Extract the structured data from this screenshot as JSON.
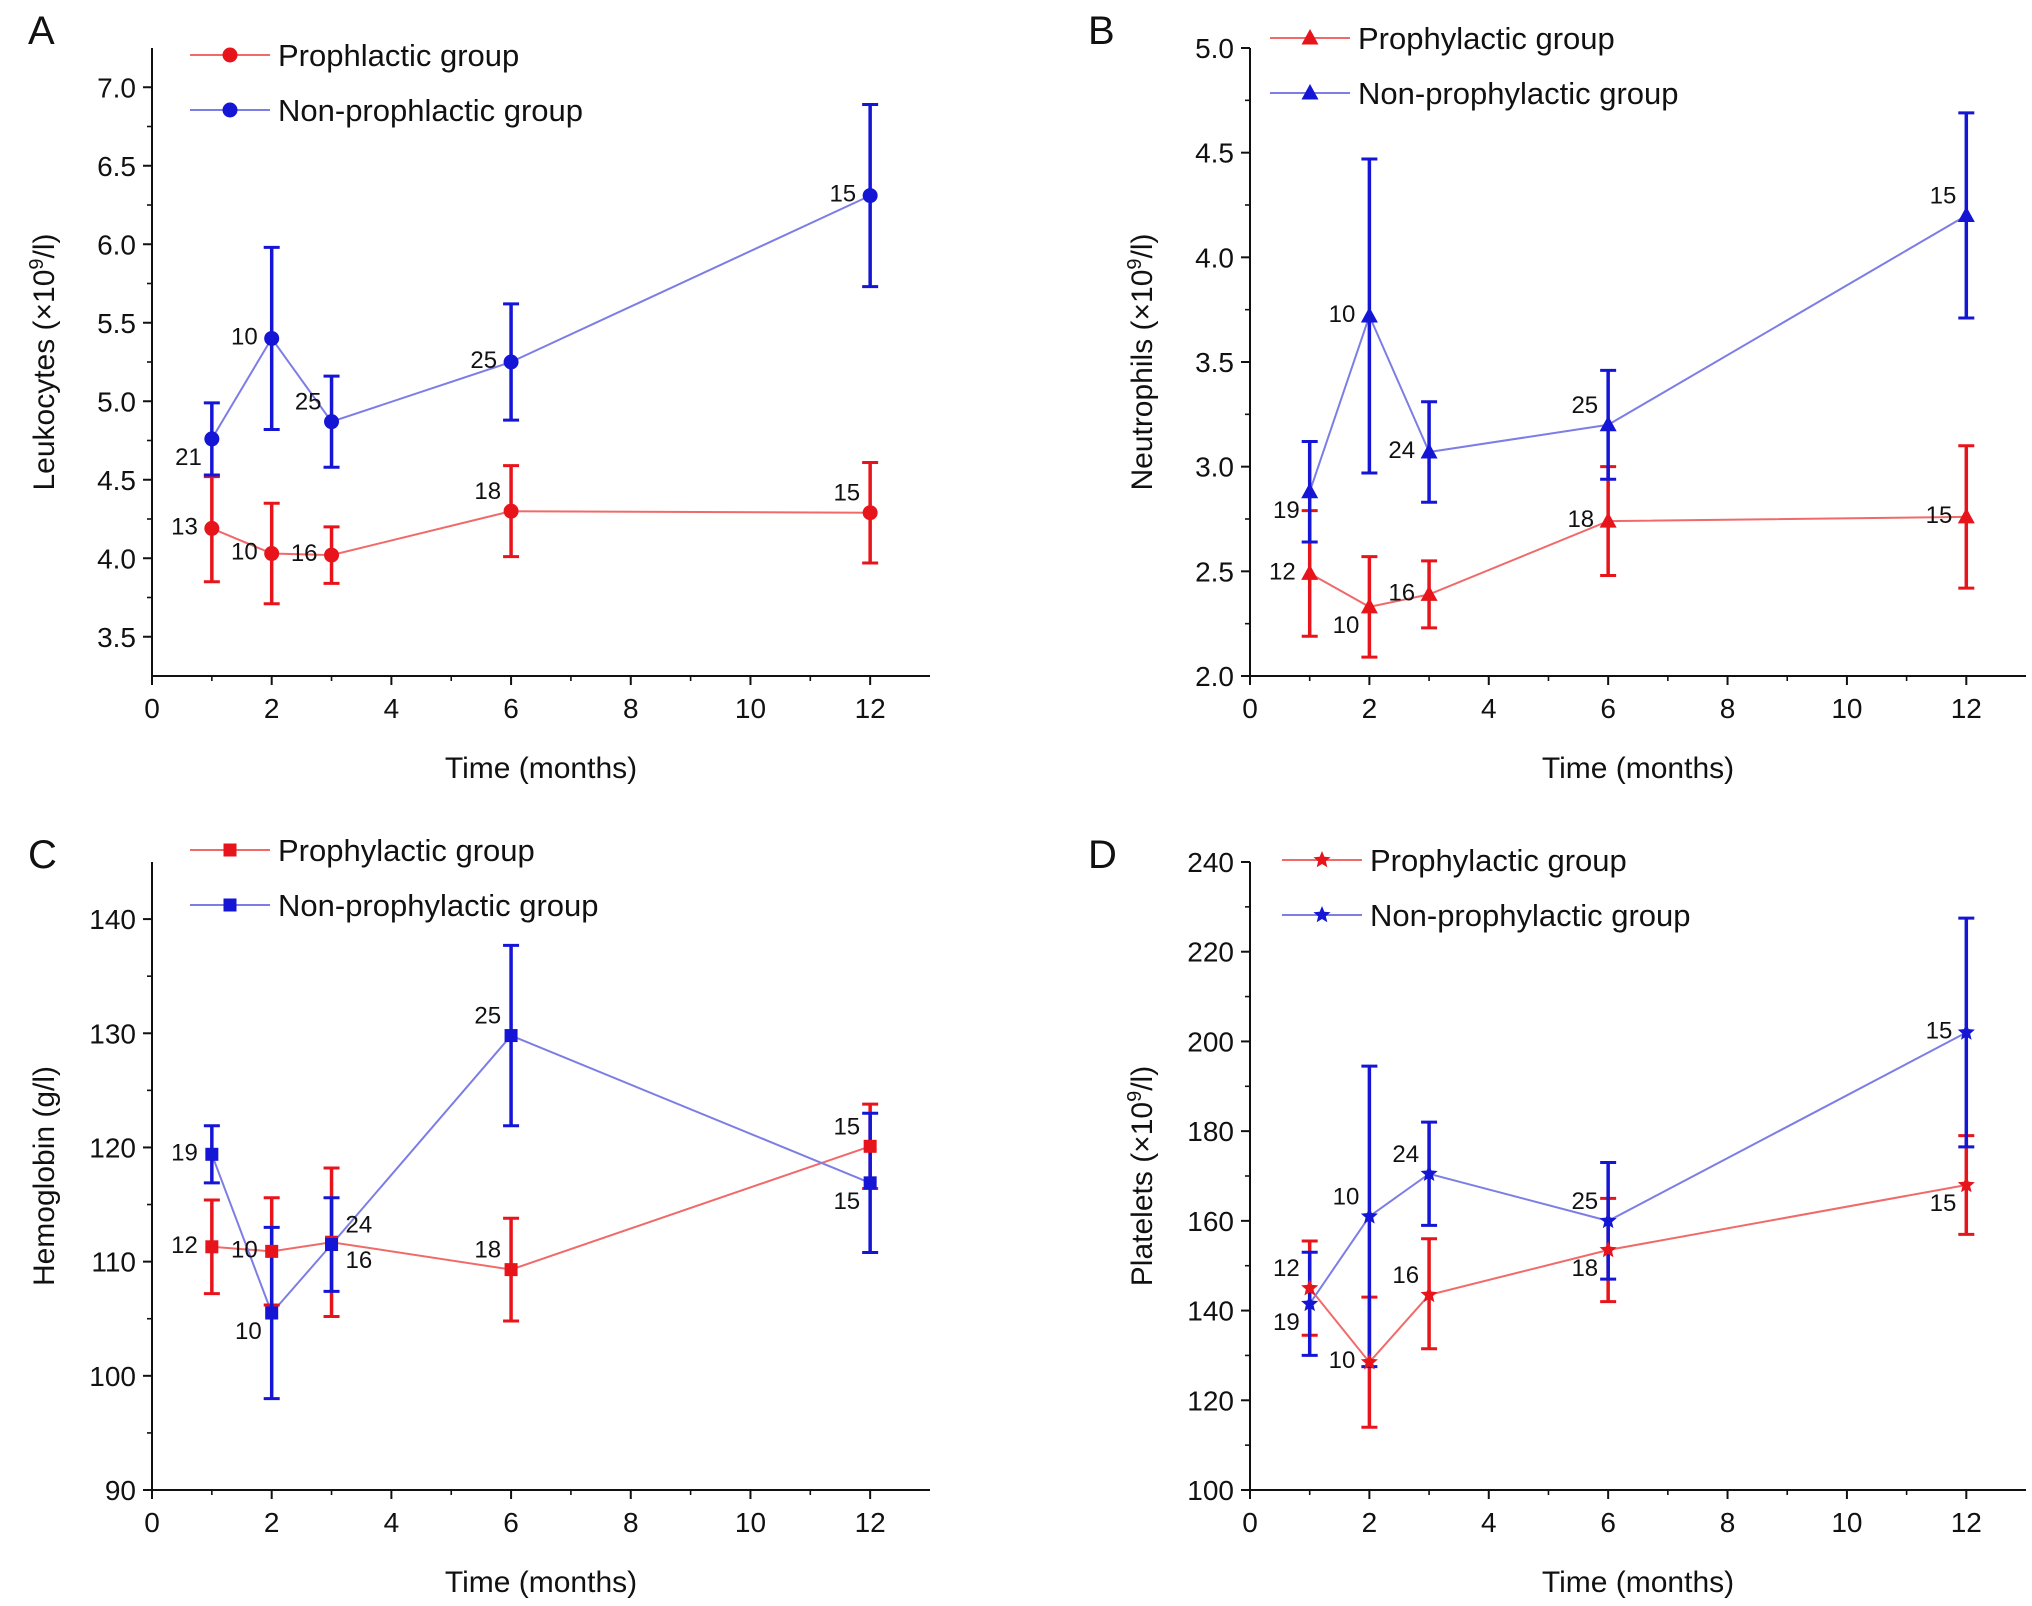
{
  "colors": {
    "prophylactic": "#e8141b",
    "non_prophylactic": "#1515d6",
    "line_prophylactic": "#f06a6a",
    "line_non_prophylactic": "#7d7de6",
    "axis": "#111111"
  },
  "chart_data": [
    {
      "panel": "A",
      "type": "line",
      "marker": "circle",
      "xlabel": "Time (months)",
      "ylabel_main": "Leukocytes (×10",
      "ylabel_sup": "9",
      "ylabel_end": "/l)",
      "xlim": [
        0,
        13
      ],
      "ylim": [
        3.25,
        7.25
      ],
      "xticks": [
        0,
        2,
        4,
        6,
        8,
        10,
        12
      ],
      "yticks": [
        3.5,
        4.0,
        4.5,
        5.0,
        5.5,
        6.0,
        6.5,
        7.0
      ],
      "ytick_labels": [
        "3.5",
        "4.0",
        "4.5",
        "5.0",
        "5.5",
        "6.0",
        "6.5",
        "7.0"
      ],
      "legend": [
        "Prophlactic group",
        "Non-prophlactic group"
      ],
      "x": [
        1,
        2,
        3,
        6,
        12
      ],
      "series": [
        {
          "name": "Prophlactic group",
          "key": "prophylactic",
          "values": [
            4.19,
            4.03,
            4.02,
            4.3,
            4.29
          ],
          "err_low": [
            3.85,
            3.71,
            3.84,
            4.01,
            3.97
          ],
          "err_high": [
            4.52,
            4.35,
            4.2,
            4.59,
            4.61
          ],
          "n_labels": [
            "13",
            "10",
            "16",
            "18",
            "15"
          ],
          "label_pos": [
            "left",
            "left",
            "left",
            "topleft",
            "topleft"
          ]
        },
        {
          "name": "Non-prophlactic group",
          "key": "non_prophylactic",
          "values": [
            4.76,
            5.4,
            4.87,
            5.25,
            6.31
          ],
          "err_low": [
            4.53,
            4.82,
            4.58,
            4.88,
            5.73
          ],
          "err_high": [
            4.99,
            5.98,
            5.16,
            5.62,
            6.89
          ],
          "n_labels": [
            "21",
            "10",
            "25",
            "25",
            "15"
          ],
          "label_pos": [
            "bottomleft",
            "left",
            "topleft",
            "left",
            "left"
          ]
        }
      ]
    },
    {
      "panel": "B",
      "type": "line",
      "marker": "triangle",
      "xlabel": "Time (months)",
      "ylabel_main": "Neutrophils (×10",
      "ylabel_sup": "9",
      "ylabel_end": "/l)",
      "xlim": [
        0,
        13
      ],
      "ylim": [
        2.0,
        5.0
      ],
      "xticks": [
        0,
        2,
        4,
        6,
        8,
        10,
        12
      ],
      "yticks": [
        2.0,
        2.5,
        3.0,
        3.5,
        4.0,
        4.5,
        5.0
      ],
      "ytick_labels": [
        "2.0",
        "2.5",
        "3.0",
        "3.5",
        "4.0",
        "4.5",
        "5.0"
      ],
      "legend": [
        "Prophylactic group",
        "Non-prophylactic group"
      ],
      "x": [
        1,
        2,
        3,
        6,
        12
      ],
      "series": [
        {
          "name": "Prophylactic group",
          "key": "prophylactic",
          "values": [
            2.49,
            2.33,
            2.39,
            2.74,
            2.76
          ],
          "err_low": [
            2.19,
            2.09,
            2.23,
            2.48,
            2.42
          ],
          "err_high": [
            2.79,
            2.57,
            2.55,
            3.0,
            3.1
          ],
          "n_labels": [
            "12",
            "10",
            "16",
            "18",
            "15"
          ],
          "label_pos": [
            "left",
            "bottomleft",
            "left",
            "left",
            "left"
          ]
        },
        {
          "name": "Non-prophylactic group",
          "key": "non_prophylactic",
          "values": [
            2.88,
            3.72,
            3.07,
            3.2,
            4.2
          ],
          "err_low": [
            2.64,
            2.97,
            2.83,
            2.94,
            3.71
          ],
          "err_high": [
            3.12,
            4.47,
            3.31,
            3.46,
            4.69
          ],
          "n_labels": [
            "19",
            "10",
            "24",
            "25",
            "15"
          ],
          "label_pos": [
            "bottomleft",
            "left",
            "left",
            "topleft",
            "topleft"
          ]
        }
      ]
    },
    {
      "panel": "C",
      "type": "line",
      "marker": "square",
      "xlabel": "Time (months)",
      "ylabel_main": "Hemoglobin (g/l)",
      "ylabel_sup": "",
      "ylabel_end": "",
      "xlim": [
        0,
        13
      ],
      "ylim": [
        90,
        145
      ],
      "xticks": [
        0,
        2,
        4,
        6,
        8,
        10,
        12
      ],
      "yticks": [
        90,
        100,
        110,
        120,
        130,
        140
      ],
      "ytick_labels": [
        "90",
        "100",
        "110",
        "120",
        "130",
        "140"
      ],
      "legend": [
        "Prophylactic group",
        "Non-prophylactic group"
      ],
      "x": [
        1,
        2,
        3,
        6,
        12
      ],
      "series": [
        {
          "name": "Prophylactic group",
          "key": "prophylactic",
          "values": [
            111.3,
            110.9,
            111.7,
            109.3,
            120.1
          ],
          "err_low": [
            107.2,
            106.2,
            105.2,
            104.8,
            116.4
          ],
          "err_high": [
            115.4,
            115.6,
            118.2,
            113.8,
            123.8
          ],
          "n_labels": [
            "12",
            "10",
            "16",
            "18",
            "15"
          ],
          "label_pos": [
            "left",
            "left",
            "bottomright",
            "topleft",
            "topleft"
          ]
        },
        {
          "name": "Non-prophylactic group",
          "key": "non_prophylactic",
          "values": [
            119.4,
            105.5,
            111.5,
            129.8,
            116.9
          ],
          "err_low": [
            116.9,
            98.0,
            107.4,
            121.9,
            110.8
          ],
          "err_high": [
            121.9,
            113.0,
            115.6,
            137.7,
            123.0
          ],
          "n_labels": [
            "19",
            "10",
            "24",
            "25",
            "15"
          ],
          "label_pos": [
            "left",
            "bottomleft",
            "topright",
            "topleft",
            "bottomleft"
          ]
        }
      ]
    },
    {
      "panel": "D",
      "type": "line",
      "marker": "star",
      "xlabel": "Time (months)",
      "ylabel_main": "Platelets (×10",
      "ylabel_sup": "9",
      "ylabel_end": "/l)",
      "xlim": [
        0,
        13
      ],
      "ylim": [
        100,
        240
      ],
      "xticks": [
        0,
        2,
        4,
        6,
        8,
        10,
        12
      ],
      "yticks": [
        100,
        120,
        140,
        160,
        180,
        200,
        220,
        240
      ],
      "ytick_labels": [
        "100",
        "120",
        "140",
        "160",
        "180",
        "200",
        "220",
        "240"
      ],
      "legend": [
        "Prophylactic group",
        "Non-prophylactic group"
      ],
      "x": [
        1,
        2,
        3,
        6,
        12
      ],
      "series": [
        {
          "name": "Prophylactic group",
          "key": "prophylactic",
          "values": [
            145,
            128.5,
            143.5,
            153.5,
            168
          ],
          "err_low": [
            134.5,
            114,
            131.5,
            142,
            157
          ],
          "err_high": [
            155.5,
            143,
            156,
            165,
            179
          ],
          "n_labels": [
            "12",
            "10",
            "16",
            "18",
            "15"
          ],
          "label_pos": [
            "topleft",
            "left",
            "topleft",
            "bottomleft",
            "bottomleft"
          ]
        },
        {
          "name": "Non-prophylactic group",
          "key": "non_prophylactic",
          "values": [
            141.5,
            161,
            170.5,
            160,
            202
          ],
          "err_low": [
            130,
            127.5,
            159,
            147,
            176.5
          ],
          "err_high": [
            153,
            194.5,
            182,
            173,
            227.5
          ],
          "n_labels": [
            "19",
            "10",
            "24",
            "25",
            "15"
          ],
          "label_pos": [
            "bottomleft",
            "topleft",
            "topleft",
            "topleft",
            "left"
          ]
        }
      ]
    }
  ]
}
